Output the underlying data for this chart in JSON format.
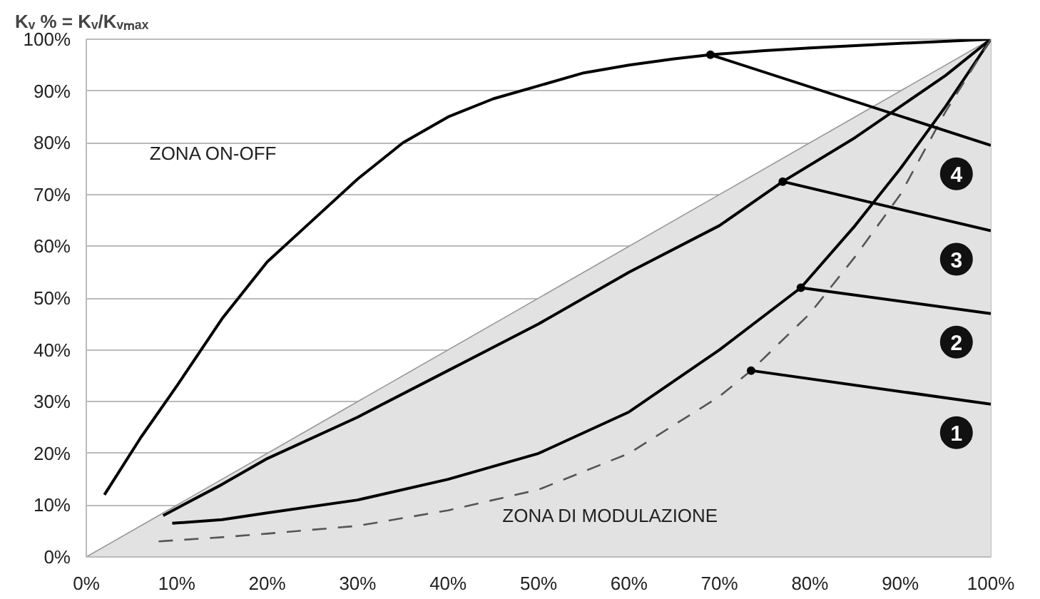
{
  "chart_data": {
    "type": "line",
    "ylabel": "Kᵥ % = Kᵥ/Kᵥₘₐₓ",
    "xlim": [
      0,
      100
    ],
    "ylim": [
      0,
      100
    ],
    "xticks": [
      {
        "value": 0,
        "label": "0%"
      },
      {
        "value": 10,
        "label": "10%"
      },
      {
        "value": 20,
        "label": "20%"
      },
      {
        "value": 30,
        "label": "30%"
      },
      {
        "value": 40,
        "label": "40%"
      },
      {
        "value": 50,
        "label": "50%"
      },
      {
        "value": 60,
        "label": "60%"
      },
      {
        "value": 70,
        "label": "70%"
      },
      {
        "value": 80,
        "label": "80%"
      },
      {
        "value": 90,
        "label": "90%"
      },
      {
        "value": 100,
        "label": "100%"
      }
    ],
    "yticks": [
      {
        "value": 0,
        "label": "0%"
      },
      {
        "value": 10,
        "label": "10%"
      },
      {
        "value": 20,
        "label": "20%"
      },
      {
        "value": 30,
        "label": "30%"
      },
      {
        "value": 40,
        "label": "40%"
      },
      {
        "value": 50,
        "label": "50%"
      },
      {
        "value": 60,
        "label": "60%"
      },
      {
        "value": 70,
        "label": "70%"
      },
      {
        "value": 80,
        "label": "80%"
      },
      {
        "value": 90,
        "label": "90%"
      },
      {
        "value": 100,
        "label": "100%"
      }
    ],
    "grid": "y",
    "marker": "none",
    "series": [
      {
        "type": "area",
        "color": "#e2e2e2",
        "x": [
          0,
          100
        ],
        "values": [
          0,
          100
        ]
      },
      {
        "color": "#000000",
        "line_style": "solid",
        "x": [
          2,
          6,
          10,
          15,
          20,
          25,
          30,
          35,
          40,
          45,
          50,
          55,
          60,
          65,
          69,
          75,
          80,
          90,
          100
        ],
        "values": [
          12,
          23,
          33,
          46,
          57,
          65,
          73,
          80,
          85,
          88.5,
          91,
          93.5,
          95,
          96.2,
          97,
          97.8,
          98.3,
          99.2,
          100
        ]
      },
      {
        "color": "#000000",
        "line_style": "solid",
        "x": [
          8.5,
          15,
          20,
          30,
          40,
          50,
          60,
          70,
          77,
          85,
          90,
          95,
          100
        ],
        "values": [
          8,
          14,
          19,
          27,
          36,
          45,
          55,
          64,
          72.5,
          81,
          87,
          93,
          100
        ]
      },
      {
        "color": "#000000",
        "line_style": "solid",
        "x": [
          9.5,
          15,
          20,
          30,
          40,
          50,
          60,
          70,
          79,
          85,
          90,
          95,
          100
        ],
        "values": [
          6.5,
          7.2,
          8.5,
          11,
          15,
          20,
          28,
          40,
          52,
          64,
          75,
          87,
          100
        ]
      },
      {
        "color": "#555555",
        "line_style": "dashed",
        "x": [
          8,
          15,
          20,
          30,
          40,
          50,
          60,
          70,
          73.5,
          80,
          85,
          90,
          95,
          100
        ],
        "values": [
          3,
          3.8,
          4.5,
          6,
          9,
          13,
          20,
          31,
          36,
          47,
          58,
          70,
          86,
          100
        ]
      },
      {
        "color": "#000000",
        "line_style": "solid",
        "x": [
          73.5,
          100
        ],
        "values": [
          36,
          29.5
        ]
      },
      {
        "color": "#000000",
        "line_style": "solid",
        "x": [
          79,
          100
        ],
        "values": [
          52,
          47
        ]
      },
      {
        "color": "#000000",
        "line_style": "solid",
        "x": [
          77,
          100
        ],
        "values": [
          72.5,
          63
        ]
      },
      {
        "color": "#000000",
        "line_style": "solid",
        "x": [
          69,
          100
        ],
        "values": [
          97,
          79.5
        ]
      },
      {
        "type": "scatter",
        "marker": "circle",
        "color": "#000000",
        "x": [
          73.5,
          79,
          77,
          69
        ],
        "values": [
          36,
          52,
          72.5,
          97
        ]
      }
    ],
    "annotations": [
      "1",
      "2",
      "3",
      "4",
      "ZONA ON-OFF",
      "ZONA DI MODULAZIONE"
    ]
  }
}
